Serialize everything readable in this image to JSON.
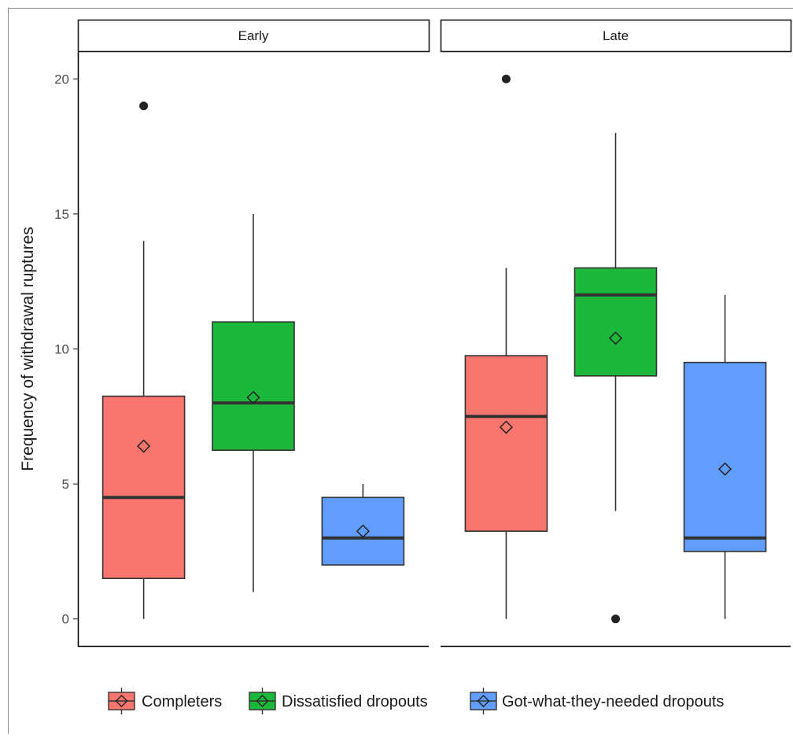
{
  "chart_data": {
    "type": "box",
    "facets": [
      "Early",
      "Late"
    ],
    "groups": [
      "Completers",
      "Dissatisfied dropouts",
      "Got-what-they-needed dropouts"
    ],
    "ylabel": "Frequency of withdrawal ruptures",
    "xlabel": "",
    "ylim": [
      -1,
      21
    ],
    "yticks": [
      0,
      5,
      10,
      15,
      20
    ],
    "legend_position": "bottom",
    "grid": false,
    "colors": {
      "Completers": "#F8766D",
      "Dissatisfied dropouts": "#1BB83B",
      "Got-what-they-needed dropouts": "#619CFF"
    },
    "boxes": [
      {
        "facet": "Early",
        "group": "Completers",
        "whisker_low": 0,
        "q1": 1.5,
        "median": 4.5,
        "q3": 8.25,
        "whisker_high": 14,
        "mean": 6.4,
        "outliers": [
          19
        ]
      },
      {
        "facet": "Early",
        "group": "Dissatisfied dropouts",
        "whisker_low": 1,
        "q1": 6.25,
        "median": 8,
        "q3": 11,
        "whisker_high": 15,
        "mean": 8.2,
        "outliers": []
      },
      {
        "facet": "Early",
        "group": "Got-what-they-needed dropouts",
        "whisker_low": 2,
        "q1": 2,
        "median": 3,
        "q3": 4.5,
        "whisker_high": 5,
        "mean": 3.25,
        "outliers": []
      },
      {
        "facet": "Late",
        "group": "Completers",
        "whisker_low": 0,
        "q1": 3.25,
        "median": 7.5,
        "q3": 9.75,
        "whisker_high": 13,
        "mean": 7.1,
        "outliers": [
          20
        ]
      },
      {
        "facet": "Late",
        "group": "Dissatisfied dropouts",
        "whisker_low": 4,
        "q1": 9,
        "median": 12,
        "q3": 13,
        "whisker_high": 18,
        "mean": 10.4,
        "outliers": [
          0
        ]
      },
      {
        "facet": "Late",
        "group": "Got-what-they-needed dropouts",
        "whisker_low": 0,
        "q1": 2.5,
        "median": 3,
        "q3": 9.5,
        "whisker_high": 12,
        "mean": 5.55,
        "outliers": []
      }
    ]
  }
}
